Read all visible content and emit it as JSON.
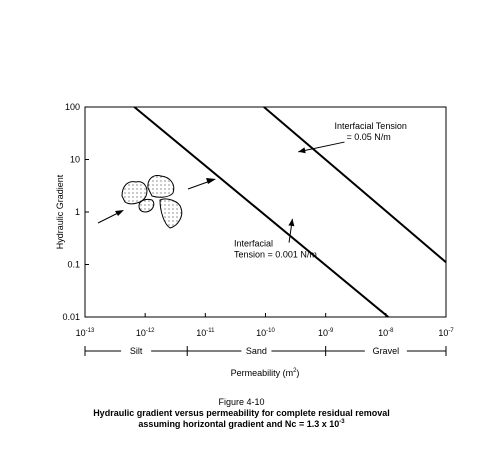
{
  "chart_data": {
    "type": "line",
    "xscale": "log",
    "yscale": "log",
    "xlim": [
      1e-13,
      1e-07
    ],
    "ylim": [
      0.01,
      100
    ],
    "xlabel": "Permeability (m",
    "xlabel_sup": "2",
    "xlabel_end": ")",
    "ylabel": "Hydraulic Gradient",
    "grid": false,
    "legend": "none",
    "x_ticks": [
      {
        "value": 1e-13,
        "base": "10",
        "exp": "-13"
      },
      {
        "value": 1e-12,
        "base": "10",
        "exp": "-12"
      },
      {
        "value": 1e-11,
        "base": "10",
        "exp": "-11"
      },
      {
        "value": 1e-10,
        "base": "10",
        "exp": "-10"
      },
      {
        "value": 1e-09,
        "base": "10",
        "exp": "-9"
      },
      {
        "value": 1e-08,
        "base": "10",
        "exp": "-8"
      },
      {
        "value": 1e-07,
        "base": "10",
        "exp": "-7"
      }
    ],
    "y_ticks": [
      {
        "value": 100,
        "label": "100"
      },
      {
        "value": 10,
        "label": "10"
      },
      {
        "value": 1,
        "label": "1"
      },
      {
        "value": 0.1,
        "label": "0.1"
      },
      {
        "value": 0.01,
        "label": "0.01"
      }
    ],
    "series": [
      {
        "points": [
          [
            6.6e-13,
            100
          ],
          [
            1.1e-08,
            0.01
          ]
        ]
      },
      {
        "points": [
          [
            9.4e-11,
            100
          ],
          [
            1e-07,
            0.11
          ]
        ]
      }
    ],
    "annotations": [
      {
        "lines": [
          "Interfacial",
          "Tension = 0.001 N/m"
        ],
        "x": 3e-11,
        "y": 0.22,
        "arrow_to": [
          2.8e-10,
          0.74
        ]
      },
      {
        "lines": [
          "Interfacial Tension",
          "= 0.05 N/m"
        ],
        "x": 1.4e-09,
        "y": 38,
        "arrow_to": [
          3.5e-10,
          14
        ]
      }
    ],
    "soil_classes": [
      {
        "label": "Silt",
        "from": 1e-13,
        "to": 5e-12
      },
      {
        "label": "Sand",
        "from": 5e-12,
        "to": 1e-09
      },
      {
        "label": "Gravel",
        "from": 1e-09,
        "to": 1e-07
      }
    ]
  },
  "caption": {
    "label": "Figure 4-10",
    "line1": "Hydraulic gradient versus permeability for complete residual removal",
    "line2": "assuming horizontal gradient and Nc = 1.3 x 10",
    "line2_sup": "-3"
  }
}
